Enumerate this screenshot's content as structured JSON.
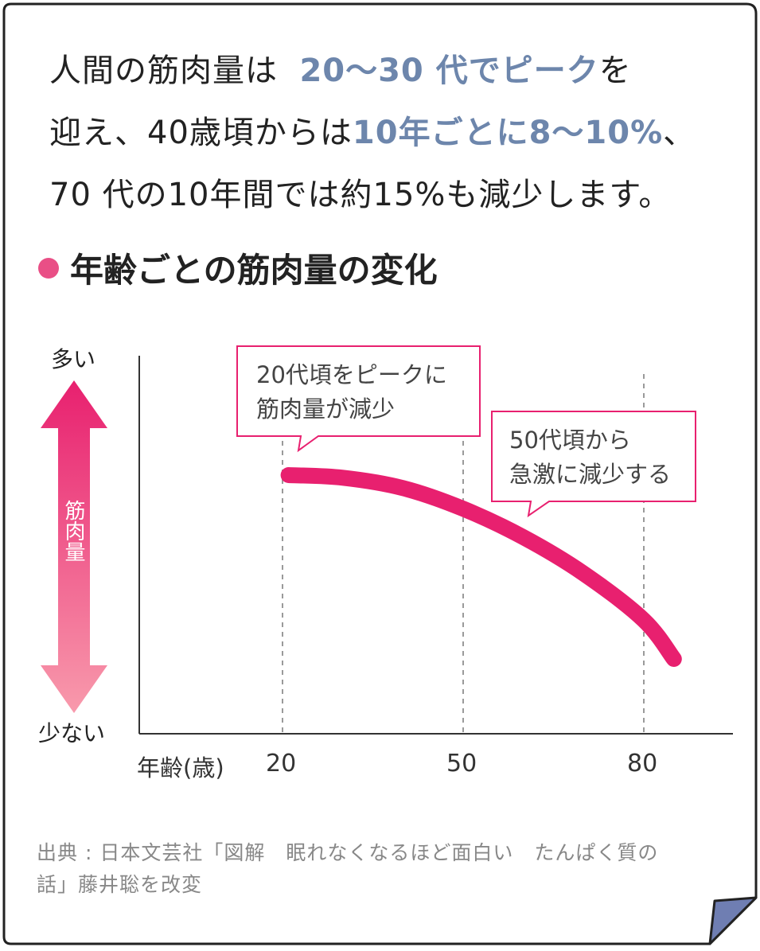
{
  "intro": {
    "line1_pre": "人間の筋肉量は",
    "line1_hl": "20〜30 代でピーク",
    "line1_post": "を",
    "line2_pre": "迎え、40歳頃からは",
    "line2_hl": "10年ごとに8〜10%",
    "line2_post": "、",
    "line3": "70 代の10年間では約15%も減少します。"
  },
  "heading": "年齢ごとの筋肉量の変化",
  "chart_data": {
    "type": "line",
    "title": "",
    "xlabel": "年齢(歳)",
    "ylabel": "筋肉量",
    "y_high_label": "多い",
    "y_low_label": "少ない",
    "y_scale": "qualitative (no numeric ticks)",
    "xlim": [
      12,
      92
    ],
    "x_ticks": [
      "20",
      "50",
      "80"
    ],
    "x_tick_values": [
      20,
      50,
      80
    ],
    "grid": "dashed vertical lines at 20, 50, 80",
    "series": [
      {
        "color": "#e8206f",
        "x": [
          21,
          30,
          40,
          50,
          60,
          70,
          80,
          85
        ],
        "y": [
          96,
          95,
          91,
          83,
          72,
          58,
          40,
          25
        ]
      }
    ],
    "annotations": [
      {
        "text_line1": "20代頃をピークに",
        "text_line2": "筋肉量が減少"
      },
      {
        "text_line1": "50代頃から",
        "text_line2": "急激に減少する"
      }
    ]
  },
  "colors": {
    "accent": "#e8206f",
    "highlight_text": "#6d86ac",
    "dot": "#e94f86",
    "fold": "#6f7eb2"
  },
  "source": {
    "line1": "出典 : 日本文芸社「図解　眠れなくなるほど面白い　たんぱく質の",
    "line2": "話」藤井聡を改変"
  }
}
